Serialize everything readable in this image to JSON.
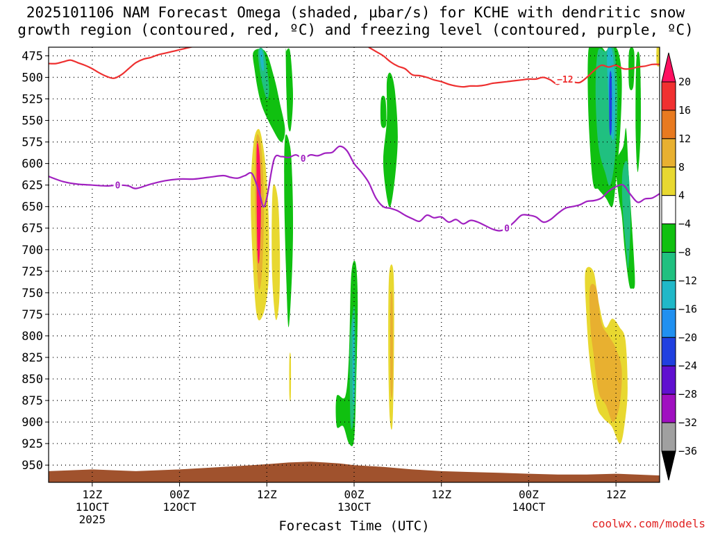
{
  "title_line1": "2025101106 NAM Forecast Omega (shaded, µbar/s) for KCHE with dendritic snow",
  "title_line2": "growth region (contoured, red, ºC) and freezing level (contoured, purple, ºC)",
  "credit": "coolwx.com/models",
  "chart_data": {
    "type": "contour",
    "title": "2025101106 NAM Forecast Omega (shaded, µbar/s) for KCHE with dendritic snow growth region (contoured, red, ºC) and freezing level (contoured, purple, ºC)",
    "xlabel": "Forecast Time (UTC)",
    "ylabel": "",
    "xlim_hours": [
      0,
      84
    ],
    "ylim": [
      465,
      970
    ],
    "y_inverted": true,
    "y_ticks": [
      475,
      500,
      525,
      550,
      575,
      600,
      625,
      650,
      675,
      700,
      725,
      750,
      775,
      800,
      825,
      850,
      875,
      900,
      925,
      950
    ],
    "x_ticks": [
      {
        "hour": 6,
        "label": "12Z",
        "sub": "11OCT",
        "sub2": "2025"
      },
      {
        "hour": 18,
        "label": "00Z",
        "sub": "12OCT",
        "sub2": ""
      },
      {
        "hour": 30,
        "label": "12Z",
        "sub": "",
        "sub2": ""
      },
      {
        "hour": 42,
        "label": "00Z",
        "sub": "13OCT",
        "sub2": ""
      },
      {
        "hour": 54,
        "label": "12Z",
        "sub": "",
        "sub2": ""
      },
      {
        "hour": 66,
        "label": "00Z",
        "sub": "14OCT",
        "sub2": ""
      },
      {
        "hour": 78,
        "label": "12Z",
        "sub": "",
        "sub2": ""
      }
    ],
    "grid": true,
    "colorbar": {
      "labels": [
        "20",
        "16",
        "12",
        "8",
        "4",
        "−4",
        "−8",
        "−12",
        "−16",
        "−20",
        "−24",
        "−28",
        "−32",
        "−36"
      ],
      "colors": [
        "#ff1060",
        "#f03030",
        "#e87a20",
        "#e8b030",
        "#e8d830",
        "#ffffff",
        "#10c010",
        "#20c080",
        "#20b8c8",
        "#2090f0",
        "#2040e0",
        "#6010d0",
        "#a010c0",
        "#a0a0a0"
      ]
    },
    "series": [
      {
        "name": "freezing level 0ºC",
        "color": "#a020c0",
        "contour_label": "0",
        "x": [
          0,
          2,
          4,
          6,
          8,
          9.5,
          11,
          12,
          14,
          16,
          18,
          20,
          22,
          24,
          25,
          26,
          27,
          28,
          29,
          29.5,
          30,
          31,
          32,
          33,
          34,
          35,
          36,
          37,
          38,
          39,
          40,
          41,
          42,
          43,
          44,
          45,
          46,
          47,
          48,
          49,
          50,
          51,
          52,
          53,
          54,
          55,
          56,
          57,
          58,
          59,
          60,
          61,
          62,
          63,
          64,
          65,
          66,
          67,
          68,
          69,
          70,
          71,
          72,
          73,
          74,
          75,
          76,
          77,
          78,
          79,
          80,
          81,
          82,
          83,
          84
        ],
        "y": [
          615,
          621,
          624,
          625,
          626,
          625,
          626,
          629,
          624,
          620,
          618,
          618,
          616,
          614,
          616,
          617,
          614,
          612,
          635,
          650,
          640,
          595,
          592,
          593,
          590,
          594,
          590,
          591,
          588,
          587,
          580,
          585,
          600,
          610,
          622,
          640,
          650,
          652,
          655,
          660,
          664,
          667,
          660,
          663,
          662,
          668,
          665,
          670,
          666,
          668,
          672,
          676,
          678,
          675,
          668,
          660,
          660,
          662,
          668,
          665,
          658,
          652,
          650,
          648,
          644,
          643,
          640,
          632,
          627,
          625,
          636,
          645,
          641,
          640,
          635
        ]
      },
      {
        "name": "dendritic growth −12ºC",
        "color": "#ee3030",
        "contour_label": "−12",
        "x": [
          0,
          1,
          2,
          3,
          4,
          5,
          6,
          7,
          8,
          9,
          10,
          11,
          12,
          13,
          14,
          15,
          16,
          17,
          18,
          19,
          20
        ],
        "y": [
          484,
          484,
          482,
          480,
          483,
          486,
          490,
          495,
          499,
          501,
          497,
          490,
          483,
          479,
          477,
          474,
          472,
          470,
          468,
          466,
          464
        ]
      },
      {
        "name": "dendritic growth −12ºC (later)",
        "color": "#ee3030",
        "contour_label": "−12",
        "x": [
          44,
          45,
          46,
          47,
          48,
          49,
          50,
          51,
          52,
          53,
          54,
          55,
          56,
          57,
          58,
          59,
          60,
          61,
          62,
          63,
          64,
          65,
          66,
          67,
          68,
          69,
          70,
          71,
          72,
          73,
          74,
          75,
          76,
          77,
          78,
          79,
          80,
          81,
          82,
          83,
          84
        ],
        "y": [
          465,
          470,
          475,
          482,
          487,
          490,
          497,
          498,
          500,
          503,
          505,
          508,
          510,
          511,
          510,
          510,
          509,
          507,
          506,
          505,
          504,
          503,
          502,
          502,
          500,
          503,
          508,
          502,
          505,
          506,
          500,
          492,
          486,
          488,
          486,
          490,
          490,
          488,
          487,
          485,
          485
        ]
      }
    ],
    "omega_regions": [
      {
        "value": -8,
        "color": "#10c010",
        "x": [
          28.2,
          29.8,
          31.0,
          31.8,
          32.5,
          32.0,
          30.8,
          29.2,
          28.3
        ],
        "y": [
          470,
          470,
          500,
          530,
          560,
          575,
          560,
          530,
          490
        ]
      },
      {
        "value": -12,
        "color": "#20c080",
        "x": [
          28.8,
          29.6,
          30.3,
          30.0,
          29.2
        ],
        "y": [
          470,
          470,
          510,
          525,
          500
        ]
      },
      {
        "value": -16,
        "color": "#20b8c8",
        "x": [
          29.0,
          29.4,
          29.6,
          29.3
        ],
        "y": [
          470,
          470,
          490,
          490
        ]
      },
      {
        "value": -8,
        "color": "#10c010",
        "x": [
          32.6,
          33.2,
          33.6,
          33.3,
          32.9,
          32.7,
          32.6
        ],
        "y": [
          470,
          470,
          520,
          560,
          555,
          520,
          470
        ]
      },
      {
        "value": -8,
        "color": "#10c010",
        "x": [
          32.5,
          33.2,
          33.5,
          33.6,
          33.4,
          33.0,
          32.7,
          32.4
        ],
        "y": [
          570,
          580,
          620,
          680,
          740,
          790,
          740,
          640
        ]
      },
      {
        "value": 4,
        "color": "#e8d830",
        "x": [
          28.2,
          28.9,
          29.5,
          30.0,
          30.3,
          30.2,
          29.5,
          28.6,
          28.0,
          27.8
        ],
        "y": [
          575,
          560,
          580,
          620,
          680,
          740,
          775,
          775,
          700,
          630
        ]
      },
      {
        "value": 8,
        "color": "#e8b030",
        "x": [
          28.5,
          29.0,
          29.4,
          29.6,
          29.3,
          28.8,
          28.4
        ],
        "y": [
          575,
          570,
          600,
          660,
          730,
          740,
          650
        ]
      },
      {
        "value": 20,
        "color": "#ff1060",
        "x": [
          28.6,
          29.0,
          29.2,
          29.0,
          28.7
        ],
        "y": [
          585,
          590,
          650,
          710,
          700
        ]
      },
      {
        "value": 4,
        "color": "#e8d830",
        "x": [
          30.8,
          31.5,
          31.8,
          31.7,
          31.2,
          30.7
        ],
        "y": [
          630,
          640,
          700,
          760,
          780,
          720
        ]
      },
      {
        "value": 4,
        "color": "#e8d830",
        "x": [
          33.1,
          33.3,
          33.3,
          33.1
        ],
        "y": [
          825,
          825,
          870,
          870
        ]
      },
      {
        "value": -8,
        "color": "#10c010",
        "x": [
          46.5,
          47.0,
          47.6,
          48.0,
          47.5,
          46.8,
          46.0,
          46.5
        ],
        "y": [
          505,
          495,
          515,
          570,
          625,
          650,
          600,
          550
        ]
      },
      {
        "value": -8,
        "color": "#10c010",
        "x": [
          45.7,
          46.3,
          46.4,
          45.7
        ],
        "y": [
          525,
          525,
          555,
          555
        ]
      },
      {
        "value": -8,
        "color": "#10c010",
        "x": [
          41.6,
          42.2,
          42.5,
          42.3,
          42.0,
          41.3,
          40.5,
          39.6,
          39.6,
          40.8,
          41.3
        ],
        "y": [
          730,
          715,
          760,
          850,
          920,
          925,
          905,
          905,
          870,
          870,
          820
        ]
      },
      {
        "value": -12,
        "color": "#20c080",
        "x": [
          41.7,
          42.1,
          42.2,
          41.9,
          41.5,
          41.4
        ],
        "y": [
          780,
          770,
          850,
          900,
          900,
          820
        ]
      },
      {
        "value": -16,
        "color": "#20b8c8",
        "x": [
          41.8,
          42.0,
          42.0,
          41.8
        ],
        "y": [
          790,
          790,
          870,
          870
        ]
      },
      {
        "value": 4,
        "color": "#e8d830",
        "x": [
          46.8,
          47.4,
          47.5,
          47.3,
          46.9,
          46.7
        ],
        "y": [
          730,
          725,
          800,
          900,
          895,
          820
        ]
      },
      {
        "value": 8,
        "color": "#e8b030",
        "x": [
          47.0,
          47.3,
          47.3,
          47.0
        ],
        "y": [
          760,
          760,
          860,
          860
        ]
      },
      {
        "value": -8,
        "color": "#10c010",
        "x": [
          74.2,
          75.0,
          76.0,
          76.6,
          77.0,
          77.6,
          78.3,
          78.8,
          78.6,
          78.0,
          77.5,
          76.6,
          75.6,
          74.8,
          74.2
        ],
        "y": [
          470,
          465,
          465,
          470,
          465,
          465,
          470,
          500,
          560,
          620,
          650,
          640,
          630,
          620,
          540
        ]
      },
      {
        "value": -12,
        "color": "#20c080",
        "x": [
          75.5,
          76.5,
          77.2,
          77.8,
          78.2,
          77.9,
          77.2,
          76.5,
          75.6,
          75.2
        ],
        "y": [
          470,
          470,
          465,
          470,
          520,
          590,
          625,
          610,
          580,
          520
        ]
      },
      {
        "value": -16,
        "color": "#20b8c8",
        "x": [
          76.8,
          77.5,
          77.9,
          77.7,
          77.2,
          76.9
        ],
        "y": [
          470,
          470,
          520,
          570,
          560,
          510
        ]
      },
      {
        "value": -24,
        "color": "#2040e0",
        "x": [
          77.1,
          77.4,
          77.4,
          77.1
        ],
        "y": [
          500,
          500,
          560,
          560
        ]
      },
      {
        "value": -8,
        "color": "#10c010",
        "x": [
          78.0,
          79.0,
          79.4,
          79.8,
          80.4,
          80.6,
          80.2,
          79.8,
          79.2,
          78.8,
          78.4
        ],
        "y": [
          600,
          580,
          560,
          620,
          700,
          740,
          745,
          740,
          700,
          660,
          640
        ]
      },
      {
        "value": -12,
        "color": "#20c080",
        "x": [
          78.9,
          79.6,
          80.0,
          79.7,
          79.4,
          78.9
        ],
        "y": [
          610,
          600,
          660,
          720,
          700,
          650
        ]
      },
      {
        "value": -8,
        "color": "#10c010",
        "x": [
          80.8,
          81.3,
          81.4,
          81.0,
          80.7
        ],
        "y": [
          480,
          480,
          560,
          610,
          560
        ]
      },
      {
        "value": -8,
        "color": "#10c010",
        "x": [
          79.8,
          80.5,
          80.4,
          79.8
        ],
        "y": [
          470,
          470,
          510,
          510
        ]
      },
      {
        "value": 4,
        "color": "#e8d830",
        "x": [
          73.8,
          74.9,
          75.6,
          76.5,
          77.5,
          78.5,
          79.3,
          79.6,
          79.3,
          78.6,
          77.4,
          76.2,
          75.3,
          74.4,
          73.9
        ],
        "y": [
          725,
          725,
          760,
          790,
          780,
          790,
          805,
          860,
          895,
          925,
          905,
          895,
          880,
          830,
          770
        ]
      },
      {
        "value": 8,
        "color": "#e8b030",
        "x": [
          74.4,
          75.3,
          76.0,
          77.0,
          78.0,
          78.8,
          78.5,
          77.6,
          76.6,
          75.6,
          74.9,
          74.5
        ],
        "y": [
          745,
          745,
          785,
          800,
          815,
          840,
          880,
          900,
          880,
          865,
          820,
          790
        ]
      },
      {
        "value": 4,
        "color": "#e8d830",
        "x": [
          83.6,
          84.0,
          84.0,
          83.6
        ],
        "y": [
          465,
          465,
          485,
          485
        ]
      }
    ],
    "terrain": {
      "color": "#a0522d",
      "x": [
        0,
        6,
        12,
        18,
        24,
        28,
        30,
        33,
        36,
        38,
        40,
        42,
        46,
        50,
        54,
        58,
        62,
        66,
        70,
        74,
        78,
        84
      ],
      "y": [
        957,
        955,
        957,
        955,
        952,
        950,
        949,
        947,
        946,
        947,
        948,
        950,
        952,
        955,
        957,
        958,
        959,
        960,
        961,
        961,
        960,
        962
      ]
    }
  },
  "axis": {
    "xlabel": "Forecast Time (UTC)"
  }
}
